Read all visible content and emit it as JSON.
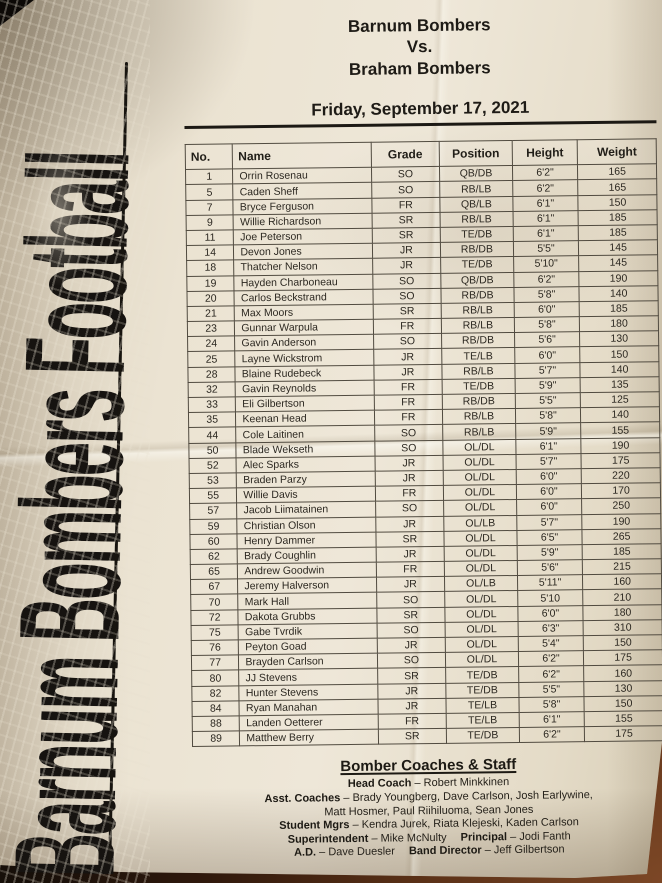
{
  "colors": {
    "paper": "#e9e1d0",
    "ink": "#1e1b16",
    "table_border": "#514b40",
    "wood": "#5b3117"
  },
  "side_banner": {
    "text": "Barnum Bombers Football"
  },
  "header": {
    "home_team": "Barnum Bombers",
    "vs": "Vs.",
    "away_team": "Braham Bombers",
    "date": "Friday, September 17, 2021"
  },
  "roster": {
    "columns": [
      "No.",
      "Name",
      "Grade",
      "Position",
      "Height",
      "Weight"
    ],
    "rows": [
      [
        "1",
        "Orrin Rosenau",
        "SO",
        "QB/DB",
        "6'2\"",
        "165"
      ],
      [
        "5",
        "Caden Sheff",
        "SO",
        "RB/LB",
        "6'2\"",
        "165"
      ],
      [
        "7",
        "Bryce Ferguson",
        "FR",
        "QB/LB",
        "6'1\"",
        "150"
      ],
      [
        "9",
        "Willie Richardson",
        "SR",
        "RB/LB",
        "6'1\"",
        "185"
      ],
      [
        "11",
        "Joe Peterson",
        "SR",
        "TE/DB",
        "6'1\"",
        "185"
      ],
      [
        "14",
        "Devon Jones",
        "JR",
        "RB/DB",
        "5'5\"",
        "145"
      ],
      [
        "18",
        "Thatcher Nelson",
        "JR",
        "TE/DB",
        "5'10\"",
        "145"
      ],
      [
        "19",
        "Hayden Charboneau",
        "SO",
        "QB/DB",
        "6'2\"",
        "190"
      ],
      [
        "20",
        "Carlos Beckstrand",
        "SO",
        "RB/DB",
        "5'8\"",
        "140"
      ],
      [
        "21",
        "Max Moors",
        "SR",
        "RB/LB",
        "6'0\"",
        "185"
      ],
      [
        "23",
        "Gunnar Warpula",
        "FR",
        "RB/LB",
        "5'8\"",
        "180"
      ],
      [
        "24",
        "Gavin Anderson",
        "SO",
        "RB/DB",
        "5'6\"",
        "130"
      ],
      [
        "25",
        "Layne Wickstrom",
        "JR",
        "TE/LB",
        "6'0\"",
        "150"
      ],
      [
        "28",
        "Blaine Rudebeck",
        "JR",
        "RB/LB",
        "5'7\"",
        "140"
      ],
      [
        "32",
        "Gavin Reynolds",
        "FR",
        "TE/DB",
        "5'9\"",
        "135"
      ],
      [
        "33",
        "Eli Gilbertson",
        "FR",
        "RB/DB",
        "5'5\"",
        "125"
      ],
      [
        "35",
        "Keenan Head",
        "FR",
        "RB/LB",
        "5'8\"",
        "140"
      ],
      [
        "44",
        "Cole Laitinen",
        "SO",
        "RB/LB",
        "5'9\"",
        "155"
      ],
      [
        "50",
        "Blade Wekseth",
        "SO",
        "OL/DL",
        "6'1\"",
        "190"
      ],
      [
        "52",
        "Alec Sparks",
        "JR",
        "OL/DL",
        "5'7\"",
        "175"
      ],
      [
        "53",
        "Braden Parzy",
        "JR",
        "OL/DL",
        "6'0\"",
        "220"
      ],
      [
        "55",
        "Willie Davis",
        "FR",
        "OL/DL",
        "6'0\"",
        "170"
      ],
      [
        "57",
        "Jacob Liimatainen",
        "SO",
        "OL/DL",
        "6'0\"",
        "250"
      ],
      [
        "59",
        "Christian Olson",
        "JR",
        "OL/LB",
        "5'7\"",
        "190"
      ],
      [
        "60",
        "Henry Dammer",
        "SR",
        "OL/DL",
        "6'5\"",
        "265"
      ],
      [
        "62",
        "Brady Coughlin",
        "JR",
        "OL/DL",
        "5'9\"",
        "185"
      ],
      [
        "65",
        "Andrew Goodwin",
        "FR",
        "OL/DL",
        "5'6\"",
        "215"
      ],
      [
        "67",
        "Jeremy Halverson",
        "JR",
        "OL/LB",
        "5'11\"",
        "160"
      ],
      [
        "70",
        "Mark Hall",
        "SO",
        "OL/DL",
        "5'10",
        "210"
      ],
      [
        "72",
        "Dakota Grubbs",
        "SR",
        "OL/DL",
        "6'0\"",
        "180"
      ],
      [
        "75",
        "Gabe Tvrdik",
        "SO",
        "OL/DL",
        "6'3\"",
        "310"
      ],
      [
        "76",
        "Peyton Goad",
        "JR",
        "OL/DL",
        "5'4\"",
        "150"
      ],
      [
        "77",
        "Brayden Carlson",
        "SO",
        "OL/DL",
        "6'2\"",
        "175"
      ],
      [
        "80",
        "JJ Stevens",
        "SR",
        "TE/DB",
        "6'2\"",
        "160"
      ],
      [
        "82",
        "Hunter Stevens",
        "JR",
        "TE/DB",
        "5'5\"",
        "130"
      ],
      [
        "84",
        "Ryan Manahan",
        "JR",
        "TE/LB",
        "5'8\"",
        "150"
      ],
      [
        "88",
        "Landen Oetterer",
        "FR",
        "TE/LB",
        "6'1\"",
        "155"
      ],
      [
        "89",
        "Matthew Berry",
        "SR",
        "TE/DB",
        "6'2\"",
        "175"
      ]
    ]
  },
  "staff": {
    "title": "Bomber Coaches & Staff",
    "lines": [
      {
        "label": "Head Coach",
        "rest": " – Robert Minkkinen"
      },
      {
        "label": "Asst. Coaches",
        "rest": " – Brady Youngberg, Dave Carlson, Josh Earlywine,"
      },
      {
        "label": "",
        "rest": "Matt Hosmer, Paul Riihiluoma, Sean Jones"
      },
      {
        "label": "Student Mgrs",
        "rest": " – Kendra Jurek, Riata Klejeski, Kaden Carlson"
      },
      {
        "label": "Superintendent",
        "rest": " – Mike McNulty",
        "label2": "Principal",
        "rest2": " – Jodi Fanth"
      },
      {
        "label": "A.D.",
        "rest": " – Dave Duesler",
        "label2": "Band Director",
        "rest2": " – Jeff Gilbertson"
      }
    ]
  }
}
